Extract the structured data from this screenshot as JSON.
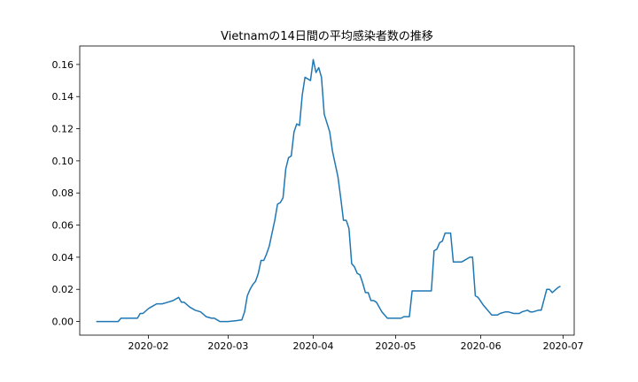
{
  "chart_data": {
    "type": "line",
    "title": "Vietnamの14日間の平均感染者数の推移",
    "xlabel": "",
    "ylabel": "",
    "x_range": [
      "2020-01-07",
      "2020-07-05"
    ],
    "ylim": [
      -0.0085,
      0.1715
    ],
    "grid": false,
    "legend": "none",
    "x_ticks": [
      {
        "date": "2020-02-01",
        "label": "2020-02"
      },
      {
        "date": "2020-03-01",
        "label": "2020-03"
      },
      {
        "date": "2020-04-01",
        "label": "2020-04"
      },
      {
        "date": "2020-05-01",
        "label": "2020-05"
      },
      {
        "date": "2020-06-01",
        "label": "2020-06"
      },
      {
        "date": "2020-07-01",
        "label": "2020-07"
      }
    ],
    "y_ticks": [
      "0.00",
      "0.02",
      "0.04",
      "0.06",
      "0.08",
      "0.10",
      "0.12",
      "0.14",
      "0.16"
    ],
    "series": [
      {
        "color": "#1f77b4",
        "x": [
          "2020-01-13",
          "2020-01-21",
          "2020-01-22",
          "2020-01-28",
          "2020-01-29",
          "2020-01-30",
          "2020-02-01",
          "2020-02-02",
          "2020-02-04",
          "2020-02-06",
          "2020-02-08",
          "2020-02-10",
          "2020-02-12",
          "2020-02-13",
          "2020-02-14",
          "2020-02-16",
          "2020-02-18",
          "2020-02-20",
          "2020-02-22",
          "2020-02-24",
          "2020-02-25",
          "2020-02-26",
          "2020-02-27",
          "2020-02-28",
          "2020-02-29",
          "2020-03-01",
          "2020-03-04",
          "2020-03-06",
          "2020-03-07",
          "2020-03-08",
          "2020-03-09",
          "2020-03-10",
          "2020-03-11",
          "2020-03-12",
          "2020-03-13",
          "2020-03-14",
          "2020-03-15",
          "2020-03-16",
          "2020-03-17",
          "2020-03-18",
          "2020-03-19",
          "2020-03-20",
          "2020-03-21",
          "2020-03-22",
          "2020-03-23",
          "2020-03-24",
          "2020-03-25",
          "2020-03-26",
          "2020-03-27",
          "2020-03-28",
          "2020-03-29",
          "2020-03-30",
          "2020-03-31",
          "2020-04-01",
          "2020-04-02",
          "2020-04-03",
          "2020-04-04",
          "2020-04-05",
          "2020-04-07",
          "2020-04-08",
          "2020-04-09",
          "2020-04-10",
          "2020-04-11",
          "2020-04-12",
          "2020-04-13",
          "2020-04-14",
          "2020-04-15",
          "2020-04-16",
          "2020-04-17",
          "2020-04-18",
          "2020-04-19",
          "2020-04-20",
          "2020-04-21",
          "2020-04-22",
          "2020-04-23",
          "2020-04-24",
          "2020-04-25",
          "2020-04-26",
          "2020-04-28",
          "2020-04-29",
          "2020-04-30",
          "2020-05-03",
          "2020-05-04",
          "2020-05-06",
          "2020-05-07",
          "2020-05-14",
          "2020-05-15",
          "2020-05-16",
          "2020-05-17",
          "2020-05-18",
          "2020-05-19",
          "2020-05-21",
          "2020-05-22",
          "2020-05-25",
          "2020-05-28",
          "2020-05-29",
          "2020-05-30",
          "2020-05-31",
          "2020-06-02",
          "2020-06-03",
          "2020-06-05",
          "2020-06-07",
          "2020-06-08",
          "2020-06-10",
          "2020-06-11",
          "2020-06-13",
          "2020-06-15",
          "2020-06-16",
          "2020-06-18",
          "2020-06-19",
          "2020-06-20",
          "2020-06-22",
          "2020-06-23",
          "2020-06-25",
          "2020-06-26",
          "2020-06-27",
          "2020-06-29",
          "2020-06-30"
        ],
        "y": [
          0.0,
          0.0,
          0.002,
          0.002,
          0.005,
          0.005,
          0.008,
          0.009,
          0.011,
          0.011,
          0.012,
          0.013,
          0.015,
          0.012,
          0.012,
          0.009,
          0.007,
          0.006,
          0.003,
          0.002,
          0.002,
          0.001,
          0.0,
          0.0,
          0.0,
          0.0,
          0.0005,
          0.001,
          0.006,
          0.016,
          0.02,
          0.023,
          0.025,
          0.03,
          0.038,
          0.038,
          0.042,
          0.047,
          0.055,
          0.063,
          0.073,
          0.074,
          0.077,
          0.095,
          0.102,
          0.103,
          0.118,
          0.123,
          0.122,
          0.141,
          0.152,
          0.151,
          0.15,
          0.163,
          0.155,
          0.158,
          0.152,
          0.129,
          0.118,
          0.106,
          0.098,
          0.09,
          0.077,
          0.063,
          0.063,
          0.058,
          0.036,
          0.034,
          0.03,
          0.029,
          0.024,
          0.018,
          0.018,
          0.013,
          0.013,
          0.012,
          0.009,
          0.006,
          0.002,
          0.002,
          0.002,
          0.002,
          0.003,
          0.003,
          0.019,
          0.019,
          0.044,
          0.045,
          0.049,
          0.05,
          0.055,
          0.055,
          0.037,
          0.037,
          0.04,
          0.04,
          0.016,
          0.015,
          0.01,
          0.008,
          0.004,
          0.004,
          0.005,
          0.006,
          0.006,
          0.005,
          0.005,
          0.006,
          0.007,
          0.006,
          0.006,
          0.007,
          0.007,
          0.02,
          0.02,
          0.018,
          0.021,
          0.022
        ]
      }
    ]
  }
}
